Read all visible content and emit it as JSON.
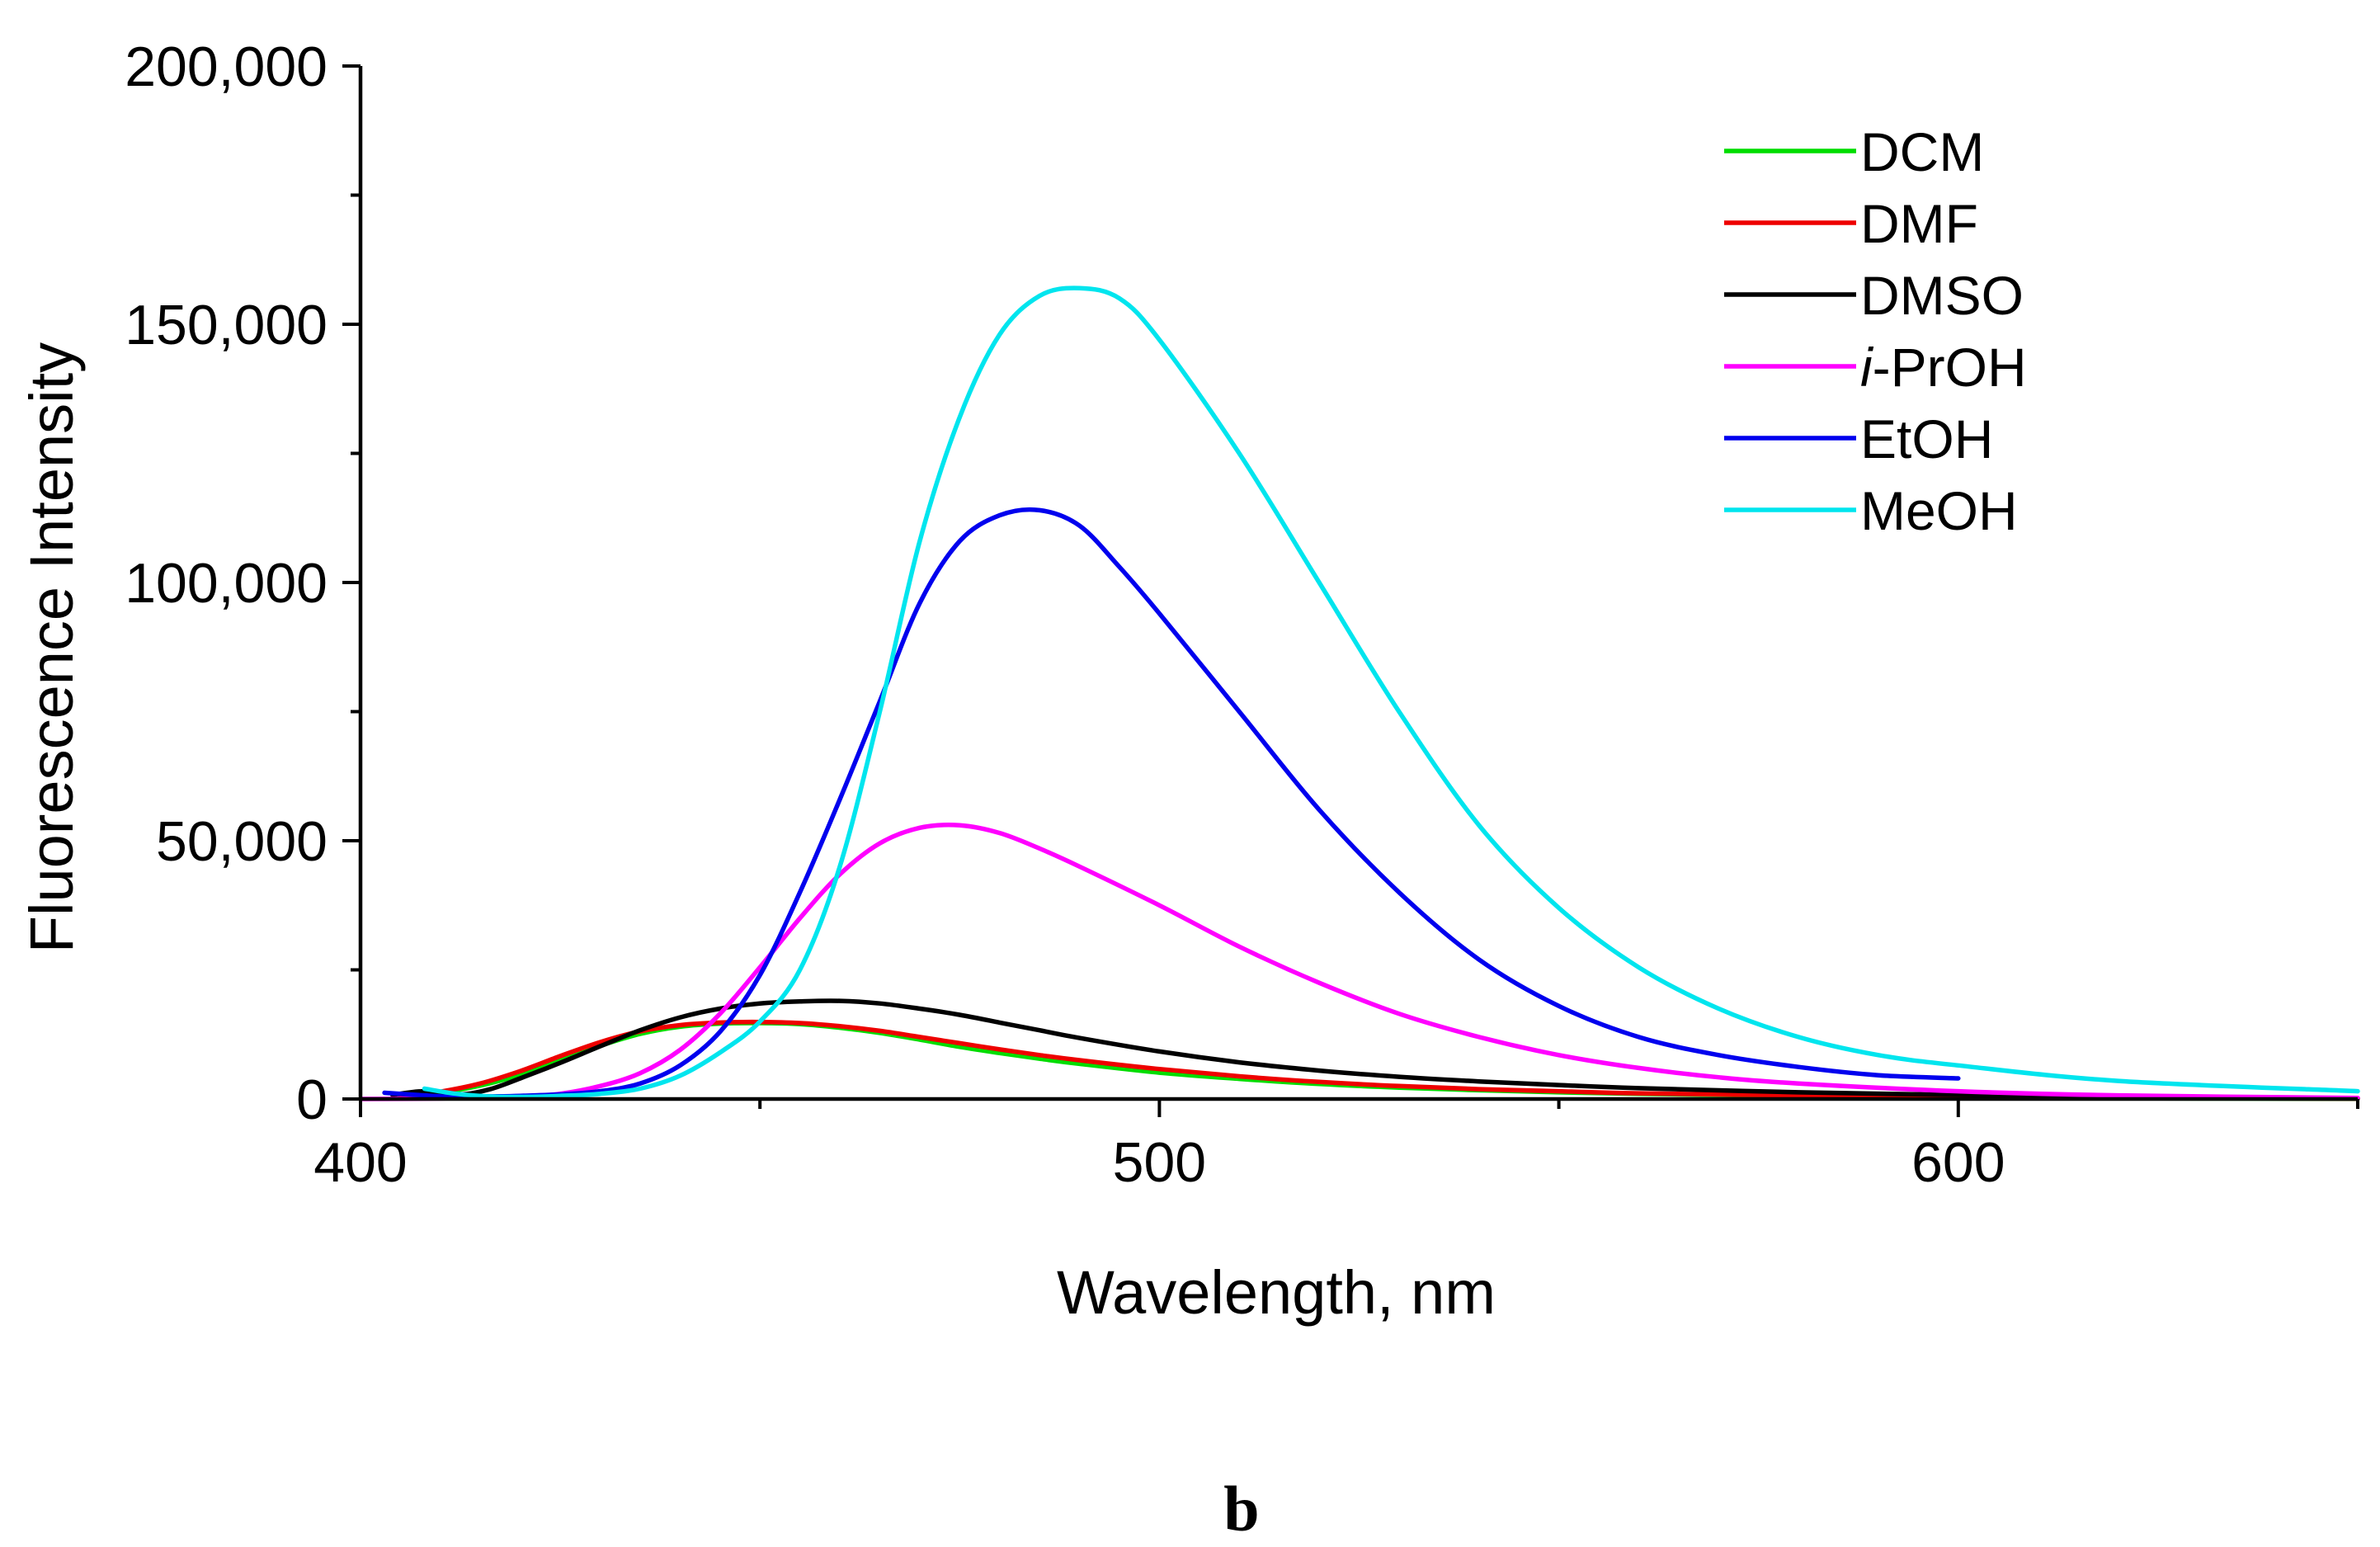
{
  "chart_data": {
    "type": "line",
    "title": "",
    "xlabel": "Wavelength, nm",
    "ylabel": "Fluorescence Intensity",
    "xlim": [
      400,
      650
    ],
    "ylim": [
      0,
      200000
    ],
    "x_major_ticks": [
      400,
      500,
      600
    ],
    "x_tick_labels": [
      "400",
      "500",
      "600"
    ],
    "x_minor_ticks": [
      450,
      550,
      650
    ],
    "y_major_ticks": [
      0,
      50000,
      100000,
      150000,
      200000
    ],
    "y_tick_labels": [
      "0",
      "50,000",
      "100,000",
      "150,000",
      "200,000"
    ],
    "y_minor_ticks": [
      25000,
      75000,
      125000,
      175000
    ],
    "legend_position": "top-right",
    "series": [
      {
        "name": "DCM",
        "label_prefix": "",
        "label_italic": "",
        "label_rest": "DCM",
        "color": "#00dd00",
        "x": [
          405,
          410,
          415,
          420,
          425,
          430,
          435,
          440,
          445,
          450,
          455,
          460,
          465,
          470,
          475,
          480,
          485,
          490,
          500,
          510,
          520,
          530,
          540,
          550,
          560,
          580,
          600,
          620,
          650
        ],
        "y": [
          300,
          1200,
          2600,
          4700,
          7500,
          10300,
          12600,
          14000,
          14600,
          14700,
          14500,
          13800,
          12800,
          11500,
          10100,
          8900,
          7800,
          6800,
          5100,
          3900,
          2900,
          2200,
          1700,
          1300,
          1000,
          600,
          300,
          150,
          50
        ]
      },
      {
        "name": "DMF",
        "label_prefix": "",
        "label_italic": "",
        "label_rest": "DMF",
        "color": "#ee0000",
        "x": [
          405,
          410,
          415,
          420,
          425,
          430,
          435,
          440,
          445,
          450,
          455,
          460,
          465,
          470,
          475,
          480,
          485,
          490,
          500,
          510,
          520,
          530,
          540,
          550,
          560,
          580,
          600,
          620,
          650
        ],
        "y": [
          300,
          1400,
          3000,
          5400,
          8300,
          11000,
          13100,
          14300,
          14800,
          14900,
          14700,
          14100,
          13200,
          12000,
          10800,
          9600,
          8500,
          7500,
          5800,
          4400,
          3300,
          2500,
          1900,
          1500,
          1100,
          700,
          400,
          200,
          80
        ]
      },
      {
        "name": "DMSO",
        "label_prefix": "",
        "label_italic": "",
        "label_rest": "DMSO",
        "color": "#000000",
        "x": [
          404,
          408,
          412,
          416,
          420,
          425,
          430,
          435,
          440,
          445,
          450,
          455,
          460,
          465,
          470,
          475,
          480,
          485,
          490,
          500,
          510,
          520,
          530,
          540,
          550,
          560,
          580,
          600,
          620,
          650
        ],
        "y": [
          800,
          1500,
          800,
          1800,
          4000,
          7000,
          10200,
          13300,
          15800,
          17500,
          18500,
          18900,
          19000,
          18500,
          17500,
          16300,
          14800,
          13300,
          11800,
          9200,
          7100,
          5500,
          4300,
          3400,
          2700,
          2100,
          1300,
          800,
          450,
          150
        ]
      },
      {
        "name": "i-PrOH",
        "label_prefix": "",
        "label_italic": "i",
        "label_rest": "-PrOH",
        "color": "#ff00ff",
        "x": [
          400,
          410,
          420,
          425,
          430,
          435,
          440,
          445,
          450,
          455,
          460,
          465,
          470,
          475,
          480,
          485,
          490,
          500,
          510,
          520,
          530,
          540,
          550,
          560,
          570,
          580,
          600,
          620,
          650
        ],
        "y": [
          0,
          100,
          400,
          1000,
          2500,
          5000,
          9500,
          16500,
          25500,
          35000,
          43500,
          49500,
          52500,
          53000,
          51500,
          48500,
          45000,
          37500,
          29500,
          22500,
          16500,
          12000,
          8500,
          6000,
          4200,
          3000,
          1500,
          700,
          200
        ]
      },
      {
        "name": "EtOH",
        "label_prefix": "",
        "label_italic": "",
        "label_rest": "EtOH",
        "color": "#0000ee",
        "x": [
          403,
          408,
          412,
          416,
          420,
          425,
          430,
          435,
          440,
          445,
          450,
          455,
          460,
          465,
          470,
          475,
          480,
          485,
          490,
          495,
          500,
          510,
          520,
          530,
          540,
          550,
          560,
          570,
          580,
          590,
          600
        ],
        "y": [
          1200,
          700,
          400,
          500,
          600,
          900,
          1500,
          3000,
          6500,
          13000,
          24000,
          40000,
          58000,
          77000,
          96000,
          108000,
          113000,
          114000,
          111000,
          103000,
          94000,
          75000,
          56000,
          40000,
          27000,
          18000,
          12000,
          8500,
          6200,
          4600,
          4000
        ]
      },
      {
        "name": "MeOH",
        "label_prefix": "",
        "label_italic": "",
        "label_rest": "MeOH",
        "color": "#00e5ee",
        "x": [
          408,
          412,
          416,
          420,
          425,
          430,
          435,
          440,
          445,
          450,
          455,
          460,
          465,
          470,
          475,
          480,
          485,
          490,
          495,
          500,
          510,
          520,
          530,
          540,
          550,
          560,
          570,
          580,
          590,
          600,
          620,
          650
        ],
        "y": [
          2000,
          1000,
          500,
          400,
          600,
          1000,
          2000,
          4500,
          9000,
          15000,
          25000,
          45000,
          75000,
          108000,
          132000,
          148000,
          155500,
          157000,
          155000,
          147000,
          125000,
          100000,
          75000,
          53000,
          37000,
          25500,
          17500,
          12000,
          8500,
          6500,
          3500,
          1500
        ]
      }
    ],
    "panel_label": "b"
  }
}
